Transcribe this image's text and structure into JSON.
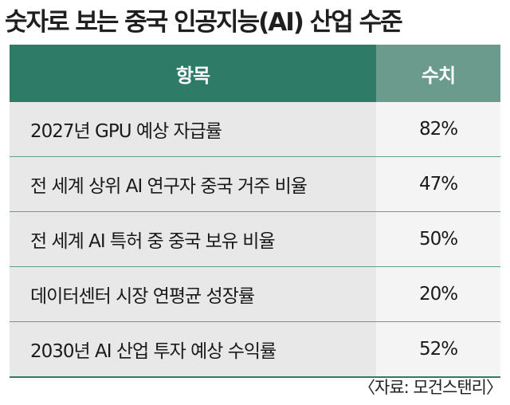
{
  "title": "숫자로 보는 중국 인공지능(AI) 산업 수준",
  "table": {
    "headers": {
      "item": "항목",
      "value": "수치"
    },
    "rows": [
      {
        "item": "2027년 GPU 예상 자급률",
        "value": "82%"
      },
      {
        "item": "전 세계 상위 AI 연구자 중국 거주 비율",
        "value": "47%"
      },
      {
        "item": "전 세계 AI 특허 중 중국 보유 비율",
        "value": "50%"
      },
      {
        "item": "데이터센터 시장 연평균 성장률",
        "value": "20%"
      },
      {
        "item": "2030년 AI 산업 투자 예상 수익률",
        "value": "52%"
      }
    ]
  },
  "source": "〈자료: 모건스탠리〉",
  "colors": {
    "header_dark_green": "#2e7b67",
    "header_light_green": "#6a9b8c",
    "row_gray": "#e8e8e8"
  }
}
